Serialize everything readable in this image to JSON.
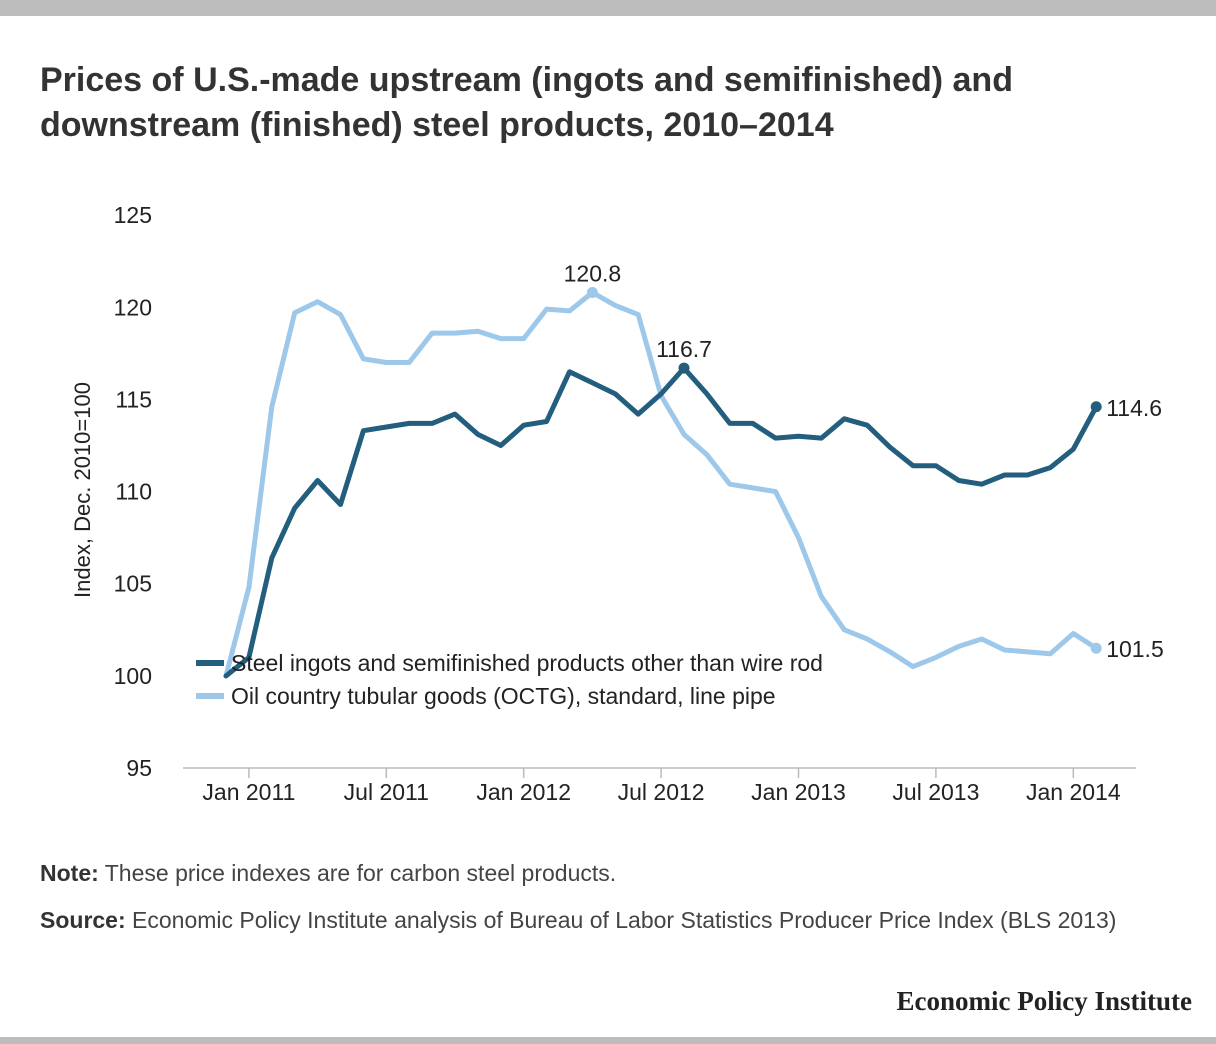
{
  "chart_data": {
    "type": "line",
    "title": "Prices of U.S.-made upstream (ingots and semifinished) and downstream (finished) steel products, 2010–2014",
    "ylabel": "Index, Dec. 2010=100",
    "xlabel": "",
    "ylim": [
      95,
      125
    ],
    "yticks": [
      "125",
      "120",
      "115",
      "110",
      "105",
      "100",
      "95"
    ],
    "xticks": [
      "Jan 2011",
      "Jul 2011",
      "Jan 2012",
      "Jul 2012",
      "Jan 2013",
      "Jul 2013",
      "Jan 2014"
    ],
    "x": [
      "Dec 2010",
      "Jan 2011",
      "Feb 2011",
      "Mar 2011",
      "Apr 2011",
      "May 2011",
      "Jun 2011",
      "Jul 2011",
      "Aug 2011",
      "Sep 2011",
      "Oct 2011",
      "Nov 2011",
      "Dec 2011",
      "Jan 2012",
      "Feb 2012",
      "Mar 2012",
      "Apr 2012",
      "May 2012",
      "Jun 2012",
      "Jul 2012",
      "Aug 2012",
      "Sep 2012",
      "Oct 2012",
      "Nov 2012",
      "Dec 2012",
      "Jan 2013",
      "Feb 2013",
      "Mar 2013",
      "Apr 2013",
      "May 2013",
      "Jun 2013",
      "Jul 2013",
      "Aug 2013",
      "Sep 2013",
      "Oct 2013",
      "Nov 2013",
      "Dec 2013",
      "Jan 2014",
      "Feb 2014"
    ],
    "grid": false,
    "legend": "lower-left",
    "series": [
      {
        "name": "Steel ingots and semifinished products other than wire rod",
        "color": "#235e7e",
        "values": [
          100,
          101,
          106.4,
          109.1,
          110.6,
          109.3,
          113.3,
          113.5,
          113.7,
          113.7,
          114.2,
          113.1,
          112.5,
          113.6,
          113.8,
          116.5,
          115.9,
          115.3,
          114.2,
          115.3,
          116.7,
          115.3,
          113.7,
          113.7,
          112.9,
          113.0,
          112.9,
          113.95,
          113.6,
          112.4,
          111.4,
          111.4,
          110.6,
          110.4,
          110.9,
          110.9,
          111.3,
          112.3,
          114.6
        ],
        "end_label": "114.6",
        "peak_label": "116.7"
      },
      {
        "name": "Oil country tubular goods (OCTG), standard, line pipe",
        "color": "#9dc8ea",
        "values": [
          100,
          104.8,
          114.6,
          119.7,
          120.3,
          119.6,
          117.2,
          117.0,
          117.0,
          118.6,
          118.6,
          118.7,
          118.3,
          118.3,
          119.9,
          119.8,
          120.8,
          120.1,
          119.6,
          115.2,
          113.1,
          112.0,
          110.4,
          110.2,
          110.0,
          107.5,
          104.3,
          102.5,
          102.0,
          101.3,
          100.5,
          101.0,
          101.6,
          102.0,
          101.4,
          101.3,
          101.2,
          102.3,
          101.5
        ],
        "end_label": "101.5",
        "peak_label": "120.8"
      }
    ]
  },
  "note": {
    "label": "Note:",
    "text": " These price indexes are for carbon steel products."
  },
  "source": {
    "label": "Source:",
    "text": " Economic Policy Institute analysis of Bureau of Labor Statistics Producer Price Index (BLS 2013)"
  },
  "brand": "Economic Policy Institute"
}
